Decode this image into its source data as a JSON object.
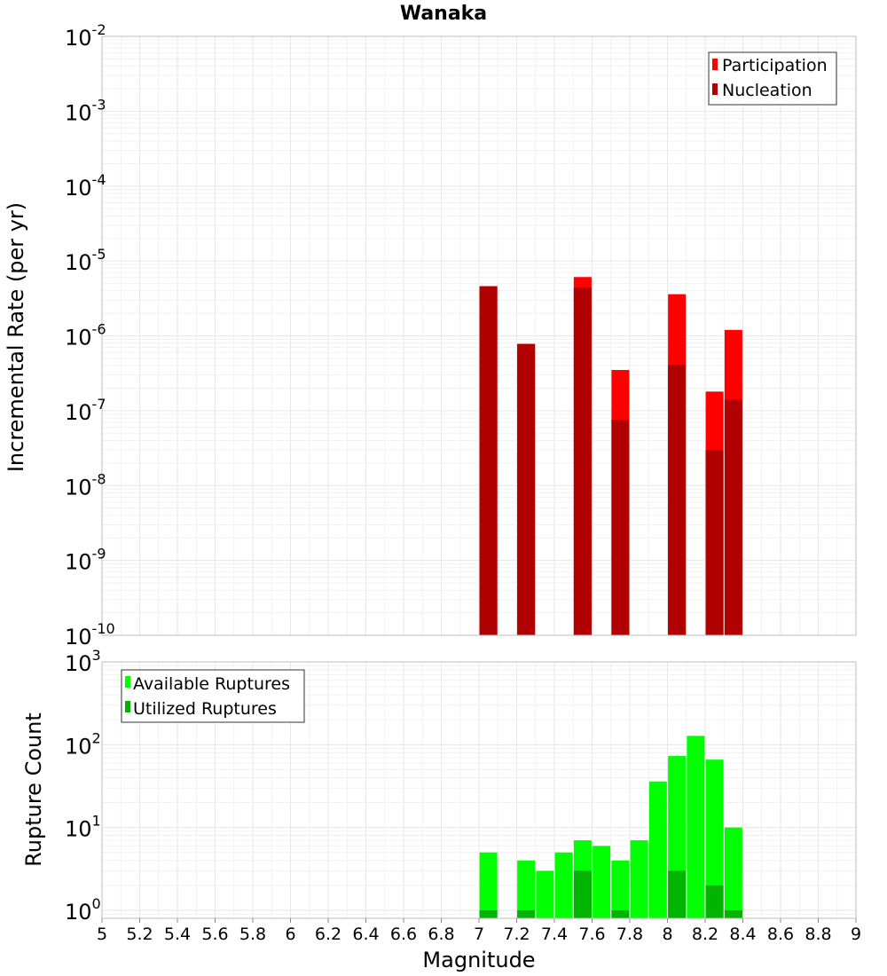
{
  "chart_data": [
    {
      "type": "bar",
      "title": "Wanaka",
      "xlabel": "",
      "ylabel": "Incremental Rate (per yr)",
      "xlim": [
        5,
        9
      ],
      "ylim": [
        1e-10,
        0.01
      ],
      "yscale": "log",
      "grid": true,
      "legend_position": "top-right",
      "x": [
        7.05,
        7.25,
        7.55,
        7.75,
        8.05,
        8.25,
        8.35
      ],
      "series": [
        {
          "name": "Participation",
          "color": "#ff0000",
          "values": [
            4.6e-06,
            7.8e-07,
            6.1e-06,
            3.5e-07,
            3.6e-06,
            1.8e-07,
            1.2e-06
          ]
        },
        {
          "name": "Nucleation",
          "color": "#b00000",
          "values": [
            4.6e-06,
            7.8e-07,
            4.4e-06,
            7.6e-08,
            4.1e-07,
            3e-08,
            1.4e-07
          ]
        }
      ]
    },
    {
      "type": "bar",
      "title": "",
      "xlabel": "Magnitude",
      "ylabel": "Rupture Count",
      "xlim": [
        5,
        9
      ],
      "ylim": [
        0.8,
        1000
      ],
      "yscale": "log",
      "grid": true,
      "legend_position": "top-left",
      "x": [
        7.05,
        7.25,
        7.35,
        7.45,
        7.55,
        7.65,
        7.75,
        7.85,
        7.95,
        8.05,
        8.15,
        8.25,
        8.35
      ],
      "series": [
        {
          "name": "Available Ruptures",
          "color": "#00ff00",
          "values": [
            5,
            4,
            3,
            5,
            7,
            6,
            4,
            7,
            36,
            73,
            128,
            66,
            10
          ]
        },
        {
          "name": "Utilized Ruptures",
          "color": "#00b400",
          "values": [
            1,
            1,
            0,
            0,
            3,
            0,
            1,
            0,
            0,
            3,
            0,
            2,
            1
          ]
        }
      ]
    }
  ],
  "x_ticks": [
    "5",
    "5.2",
    "5.4",
    "5.6",
    "5.8",
    "6",
    "6.2",
    "6.4",
    "6.6",
    "6.8",
    "7",
    "7.2",
    "7.4",
    "7.6",
    "7.8",
    "8",
    "8.2",
    "8.4",
    "8.6",
    "8.8",
    "9"
  ],
  "top_y_ticks": [
    {
      "base": "10",
      "exp": "-2"
    },
    {
      "base": "10",
      "exp": "-3"
    },
    {
      "base": "10",
      "exp": "-4"
    },
    {
      "base": "10",
      "exp": "-5"
    },
    {
      "base": "10",
      "exp": "-6"
    },
    {
      "base": "10",
      "exp": "-7"
    },
    {
      "base": "10",
      "exp": "-8"
    },
    {
      "base": "10",
      "exp": "-9"
    },
    {
      "base": "10",
      "exp": "-10"
    }
  ],
  "bottom_y_ticks": [
    {
      "base": "10",
      "exp": "3"
    },
    {
      "base": "10",
      "exp": "2"
    },
    {
      "base": "10",
      "exp": "1"
    },
    {
      "base": "10",
      "exp": "0"
    }
  ]
}
